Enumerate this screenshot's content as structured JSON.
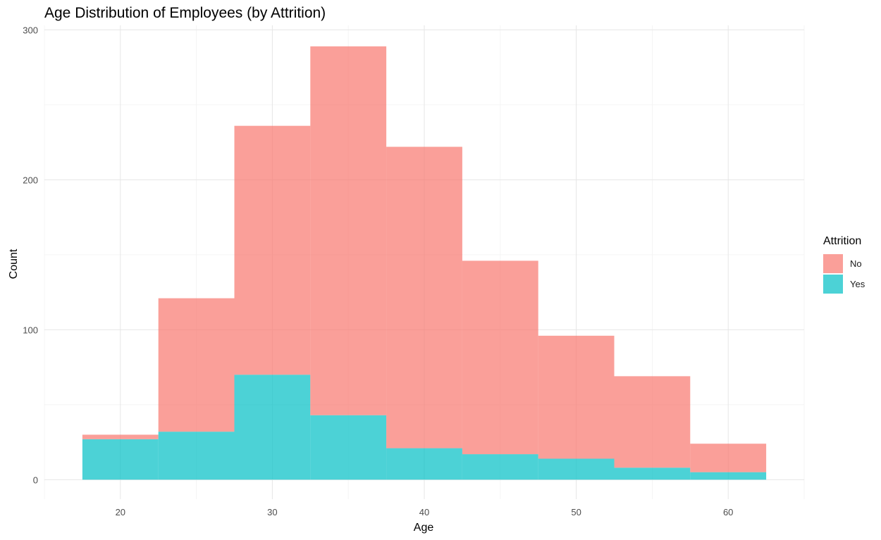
{
  "chart_data": {
    "type": "bar",
    "stacked": true,
    "title": "Age Distribution of Employees (by Attrition)",
    "xlabel": "Age",
    "ylabel": "Count",
    "bin_width": 5,
    "bins": [
      {
        "x0": 17.5,
        "x1": 22.5
      },
      {
        "x0": 22.5,
        "x1": 27.5
      },
      {
        "x0": 27.5,
        "x1": 32.5
      },
      {
        "x0": 32.5,
        "x1": 37.5
      },
      {
        "x0": 37.5,
        "x1": 42.5
      },
      {
        "x0": 42.5,
        "x1": 47.5
      },
      {
        "x0": 47.5,
        "x1": 52.5
      },
      {
        "x0": 52.5,
        "x1": 57.5
      },
      {
        "x0": 57.5,
        "x1": 62.5
      }
    ],
    "series": [
      {
        "name": "No",
        "color": "#F8766D",
        "values": [
          3,
          89,
          166,
          246,
          201,
          129,
          82,
          61,
          19
        ]
      },
      {
        "name": "Yes",
        "color": "#00BFC4",
        "values": [
          27,
          32,
          70,
          43,
          21,
          17,
          14,
          8,
          5
        ]
      }
    ],
    "xlim": [
      15,
      65
    ],
    "ylim": [
      -13,
      303
    ],
    "x_ticks": [
      20,
      30,
      40,
      50,
      60
    ],
    "y_ticks": [
      0,
      100,
      200,
      300
    ],
    "grid": true,
    "legend": {
      "title": "Attrition",
      "position": "right"
    }
  }
}
